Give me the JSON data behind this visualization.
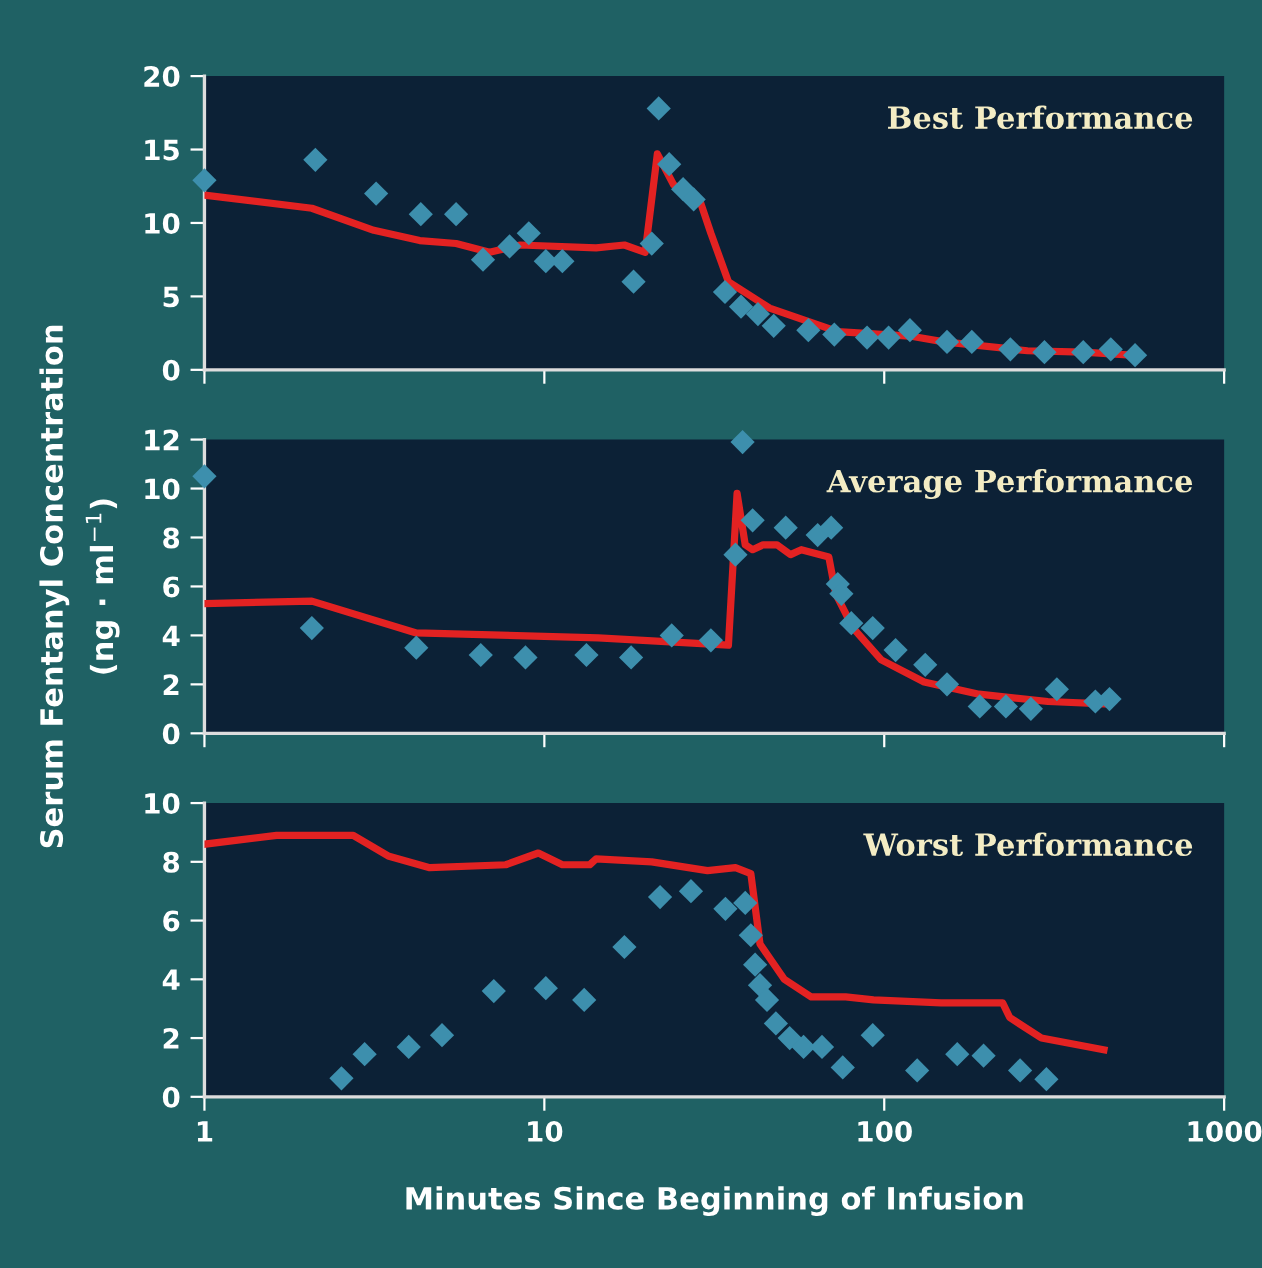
{
  "chart_data": [
    {
      "type": "scatter",
      "title": "Best Performance",
      "log": "x",
      "xlim": [
        1,
        1000
      ],
      "xticks": [
        1,
        10,
        100,
        1000
      ],
      "ylim": [
        0,
        20
      ],
      "yticks": [
        0,
        5,
        10,
        15,
        20
      ],
      "tick_labels": "y",
      "grid": false,
      "legend": false,
      "series": [
        {
          "marker": "diamond",
          "color": "#3d8fad",
          "x": [
            1,
            2.12,
            3.2,
            4.33,
            5.5,
            6.6,
            7.9,
            9.0,
            10.1,
            11.3,
            18.3,
            20.7,
            21.7,
            23.3,
            25.6,
            27.5,
            34,
            37.9,
            42.5,
            47.3,
            59.8,
            71.3,
            89,
            103,
            119,
            153,
            181,
            235,
            296,
            385,
            464,
            547
          ],
          "values": [
            12.9,
            14.3,
            12.0,
            10.6,
            10.6,
            7.5,
            8.4,
            9.3,
            7.4,
            7.4,
            6.0,
            8.6,
            17.8,
            14.0,
            12.3,
            11.6,
            5.3,
            4.3,
            3.8,
            3.0,
            2.7,
            2.4,
            2.2,
            2.2,
            2.7,
            1.9,
            1.9,
            1.4,
            1.2,
            1.2,
            1.4,
            1.0
          ]
        },
        {
          "type": "line",
          "marker": "none",
          "line_style": "solid",
          "color": "#e32222",
          "x": [
            1,
            2.07,
            3.15,
            4.3,
            5.5,
            6.9,
            8.5,
            14.2,
            17.2,
            19.8,
            21.5,
            24,
            28.8,
            30.9,
            34.8,
            46,
            73,
            119,
            150,
            264,
            385,
            535
          ],
          "values": [
            11.9,
            11.0,
            9.5,
            8.8,
            8.6,
            8.0,
            8.5,
            8.3,
            8.5,
            8.0,
            14.7,
            12.6,
            11.4,
            9.3,
            6.0,
            4.2,
            2.6,
            2.3,
            1.9,
            1.3,
            1.2,
            1.0
          ]
        }
      ]
    },
    {
      "type": "scatter",
      "title": "Average Performance",
      "ylabel": "Serum Fentanyl Concentration\n(ng · ml$^{−1}$)",
      "log": "x",
      "xlim": [
        1,
        1000
      ],
      "xticks": [
        1,
        10,
        100,
        1000
      ],
      "ylim": [
        0,
        12
      ],
      "yticks": [
        0,
        2,
        4,
        6,
        8,
        10,
        12
      ],
      "tick_labels": "y",
      "grid": false,
      "legend": false,
      "series": [
        {
          "marker": "diamond",
          "color": "#3d8fad",
          "x": [
            1,
            2.07,
            4.2,
            6.5,
            8.8,
            13.3,
            18.0,
            23.7,
            30.9,
            36.5,
            38.3,
            41,
            51.3,
            63.7,
            69.8,
            73,
            74.8,
            80,
            92.5,
            108,
            132,
            153,
            191,
            228,
            270,
            322,
            418,
            460
          ],
          "values": [
            10.5,
            4.3,
            3.5,
            3.2,
            3.1,
            3.2,
            3.1,
            4.0,
            3.8,
            7.3,
            11.9,
            8.7,
            8.4,
            8.1,
            8.4,
            6.1,
            5.7,
            4.5,
            4.3,
            3.4,
            2.8,
            2.0,
            1.1,
            1.1,
            1.0,
            1.8,
            1.3,
            1.4
          ]
        },
        {
          "type": "line",
          "marker": "none",
          "line_style": "solid",
          "color": "#e32222",
          "x": [
            1,
            2.07,
            4.2,
            14.4,
            34.8,
            36.9,
            39,
            41,
            44,
            48.4,
            53,
            57,
            68.7,
            72,
            81,
            98,
            131,
            190,
            303,
            453
          ],
          "values": [
            5.3,
            5.4,
            4.1,
            3.9,
            3.6,
            9.8,
            7.7,
            7.5,
            7.7,
            7.7,
            7.3,
            7.5,
            7.2,
            5.7,
            4.3,
            3.0,
            2.1,
            1.6,
            1.3,
            1.2
          ]
        }
      ]
    },
    {
      "type": "scatter",
      "title": "Worst Performance",
      "xlabel": "Minutes Since Beginning of Infusion",
      "log": "x",
      "xlim": [
        1,
        1000
      ],
      "xticks": [
        1,
        10,
        100,
        1000
      ],
      "ylim": [
        0,
        10
      ],
      "yticks": [
        0,
        2,
        4,
        6,
        8,
        10
      ],
      "grid": false,
      "legend": false,
      "series": [
        {
          "marker": "diamond",
          "color": "#3d8fad",
          "x": [
            2.53,
            2.96,
            3.99,
            5.0,
            7.1,
            10.1,
            13.1,
            17.2,
            21.9,
            27,
            34.1,
            39,
            40.5,
            41.7,
            43.1,
            45.2,
            48,
            52.7,
            57.9,
            65.6,
            75.5,
            92.5,
            125,
            164,
            196,
            251,
            300
          ],
          "values": [
            0.63,
            1.45,
            1.7,
            2.1,
            3.6,
            3.7,
            3.3,
            5.1,
            6.8,
            7.0,
            6.4,
            6.6,
            5.5,
            4.5,
            3.8,
            3.3,
            2.5,
            2.0,
            1.7,
            1.7,
            1.0,
            2.1,
            0.9,
            1.45,
            1.4,
            0.9,
            0.6
          ]
        },
        {
          "type": "line",
          "marker": "none",
          "line_style": "solid",
          "color": "#e32222",
          "x": [
            1,
            1.63,
            2.74,
            3.47,
            4.6,
            7.7,
            9.6,
            11.3,
            13.6,
            14.2,
            20.7,
            30.2,
            36.5,
            40.5,
            43.1,
            50.8,
            61,
            77,
            93,
            147,
            223,
            234,
            290,
            443
          ],
          "values": [
            8.6,
            8.9,
            8.9,
            8.2,
            7.8,
            7.9,
            8.3,
            7.9,
            7.9,
            8.1,
            8.0,
            7.7,
            7.8,
            7.6,
            5.2,
            4.0,
            3.4,
            3.4,
            3.3,
            3.2,
            3.2,
            2.7,
            2.0,
            1.6
          ]
        }
      ]
    }
  ]
}
